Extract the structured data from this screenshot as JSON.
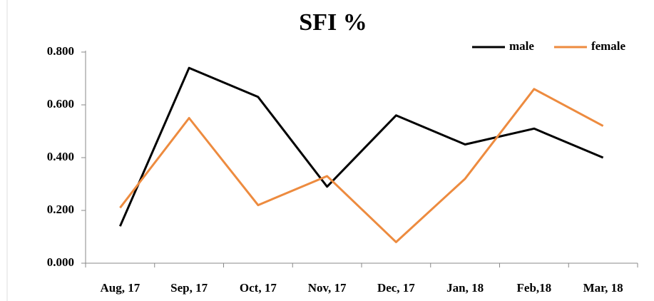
{
  "chart_data": {
    "type": "line",
    "title": "SFI %",
    "categories": [
      "Aug, 17",
      "Sep, 17",
      "Oct, 17",
      "Nov, 17",
      "Dec, 17",
      "Jan, 18",
      "Feb,18",
      "Mar, 18"
    ],
    "series": [
      {
        "name": "male",
        "color": "#000000",
        "values": [
          0.14,
          0.74,
          0.63,
          0.29,
          0.56,
          0.45,
          0.51,
          0.4
        ]
      },
      {
        "name": "female",
        "color": "#ed8b3f",
        "values": [
          0.21,
          0.55,
          0.22,
          0.33,
          0.08,
          0.32,
          0.66,
          0.52
        ]
      }
    ],
    "ylim": [
      0,
      0.8
    ],
    "yticks": [
      {
        "value": 0,
        "label": "0.000"
      },
      {
        "value": 0.2,
        "label": "0.200"
      },
      {
        "value": 0.4,
        "label": "0.400"
      },
      {
        "value": 0.6,
        "label": "0.600"
      },
      {
        "value": 0.8,
        "label": "0.800"
      }
    ],
    "grid": false,
    "legend": "top-right"
  }
}
